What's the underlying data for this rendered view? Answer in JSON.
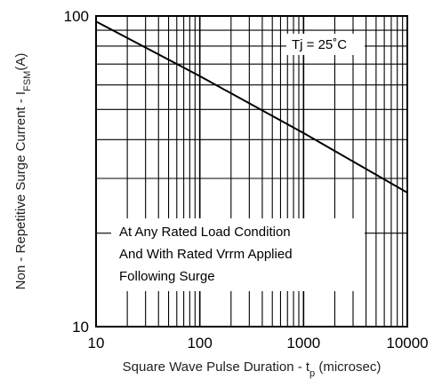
{
  "chart_data": {
    "type": "line",
    "x_scale": "log",
    "y_scale": "log",
    "xlim": [
      10,
      10000
    ],
    "ylim": [
      10,
      100
    ],
    "x_ticks": [
      "10",
      "100",
      "1000",
      "10000"
    ],
    "y_ticks": [
      "10",
      "100"
    ],
    "xlabel": {
      "main": "Square Wave Pulse Duration - t",
      "sub": "p",
      "unit": " (microsec)"
    },
    "ylabel": {
      "main": "Non - Repetitive Surge Current - I",
      "sub": "FSM",
      "unit": "(A)"
    },
    "grid": true,
    "series": [
      {
        "name": "",
        "color": "#000000",
        "x": [
          10,
          100,
          1000,
          10000
        ],
        "y": [
          96,
          64,
          42,
          27
        ]
      }
    ],
    "annotations": {
      "temperature": "Tj = 25˚C",
      "condition": [
        "At Any Rated Load Condition",
        "And With Rated Vrrm Applied",
        "Following Surge"
      ]
    }
  }
}
